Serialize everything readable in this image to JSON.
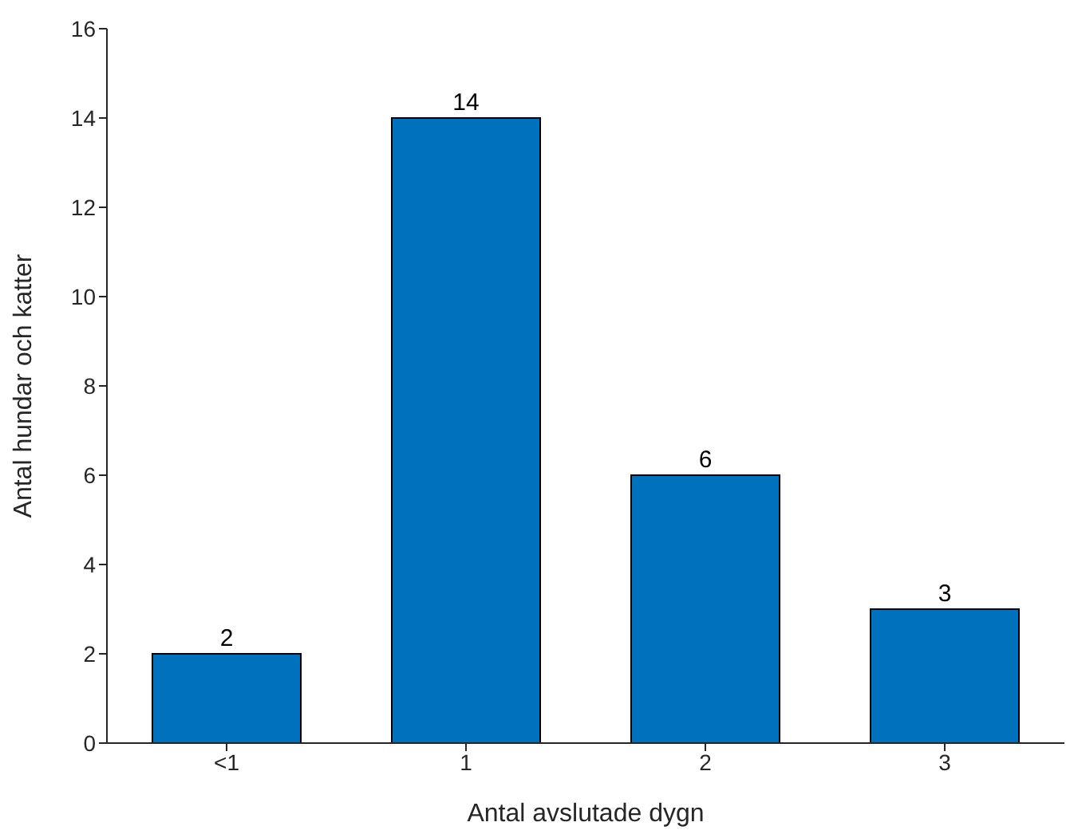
{
  "chart_data": {
    "type": "bar",
    "xlabel": "Antal avslutade dygn",
    "ylabel": "Antal hundar och katter",
    "categories": [
      "<1",
      "1",
      "2",
      "3"
    ],
    "values": [
      2,
      14,
      6,
      3
    ],
    "color": "#0072bd",
    "ylim": [
      0,
      16
    ],
    "yticks": [
      0,
      2,
      4,
      6,
      8,
      10,
      12,
      14,
      16
    ],
    "data_labels": true,
    "grid": false,
    "legend": false
  }
}
